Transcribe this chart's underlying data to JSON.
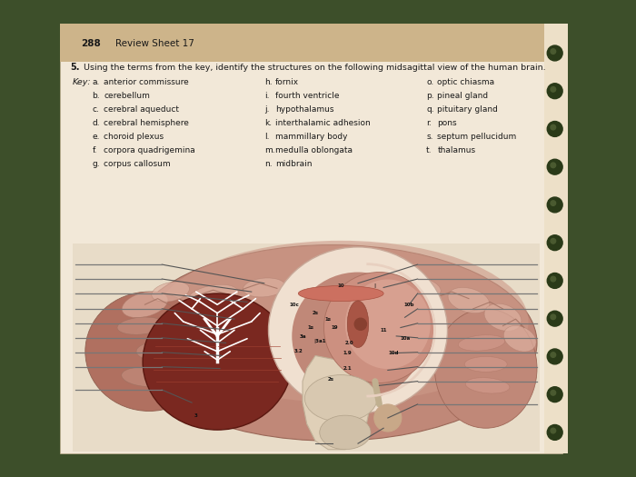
{
  "page_number": "288",
  "sheet_title": "Review Sheet 17",
  "question_number": "5.",
  "question_text": "Using the terms from the key, identify the structures on the following midsagittal view of the human brain.",
  "key_label": "Key:",
  "key_items_col1": [
    [
      "a.",
      "anterior commissure"
    ],
    [
      "b.",
      "cerebellum"
    ],
    [
      "c.",
      "cerebral aqueduct"
    ],
    [
      "d.",
      "cerebral hemisphere"
    ],
    [
      "e.",
      "choroid plexus"
    ],
    [
      "f.",
      "corpora quadrigemina"
    ],
    [
      "g.",
      "corpus callosum"
    ]
  ],
  "key_items_col2": [
    [
      "h.",
      "fornix"
    ],
    [
      "i.",
      "fourth ventricle"
    ],
    [
      "j.",
      "hypothalamus"
    ],
    [
      "k.",
      "interthalamic adhesion"
    ],
    [
      "l.",
      "mammillary body"
    ],
    [
      "m.",
      "medulla oblongata"
    ],
    [
      "n.",
      "midbrain"
    ]
  ],
  "key_items_col3": [
    [
      "o.",
      "optic chiasma"
    ],
    [
      "p.",
      "pineal gland"
    ],
    [
      "q.",
      "pituitary gland"
    ],
    [
      "r.",
      "pons"
    ],
    [
      "s.",
      "septum pellucidum"
    ],
    [
      "t.",
      "thalamus"
    ]
  ],
  "bg_header_color": "#cdb48a",
  "bg_page_color": "#f2e8d8",
  "bg_outer_color": "#3d4f2a",
  "text_color": "#1a1a1a"
}
